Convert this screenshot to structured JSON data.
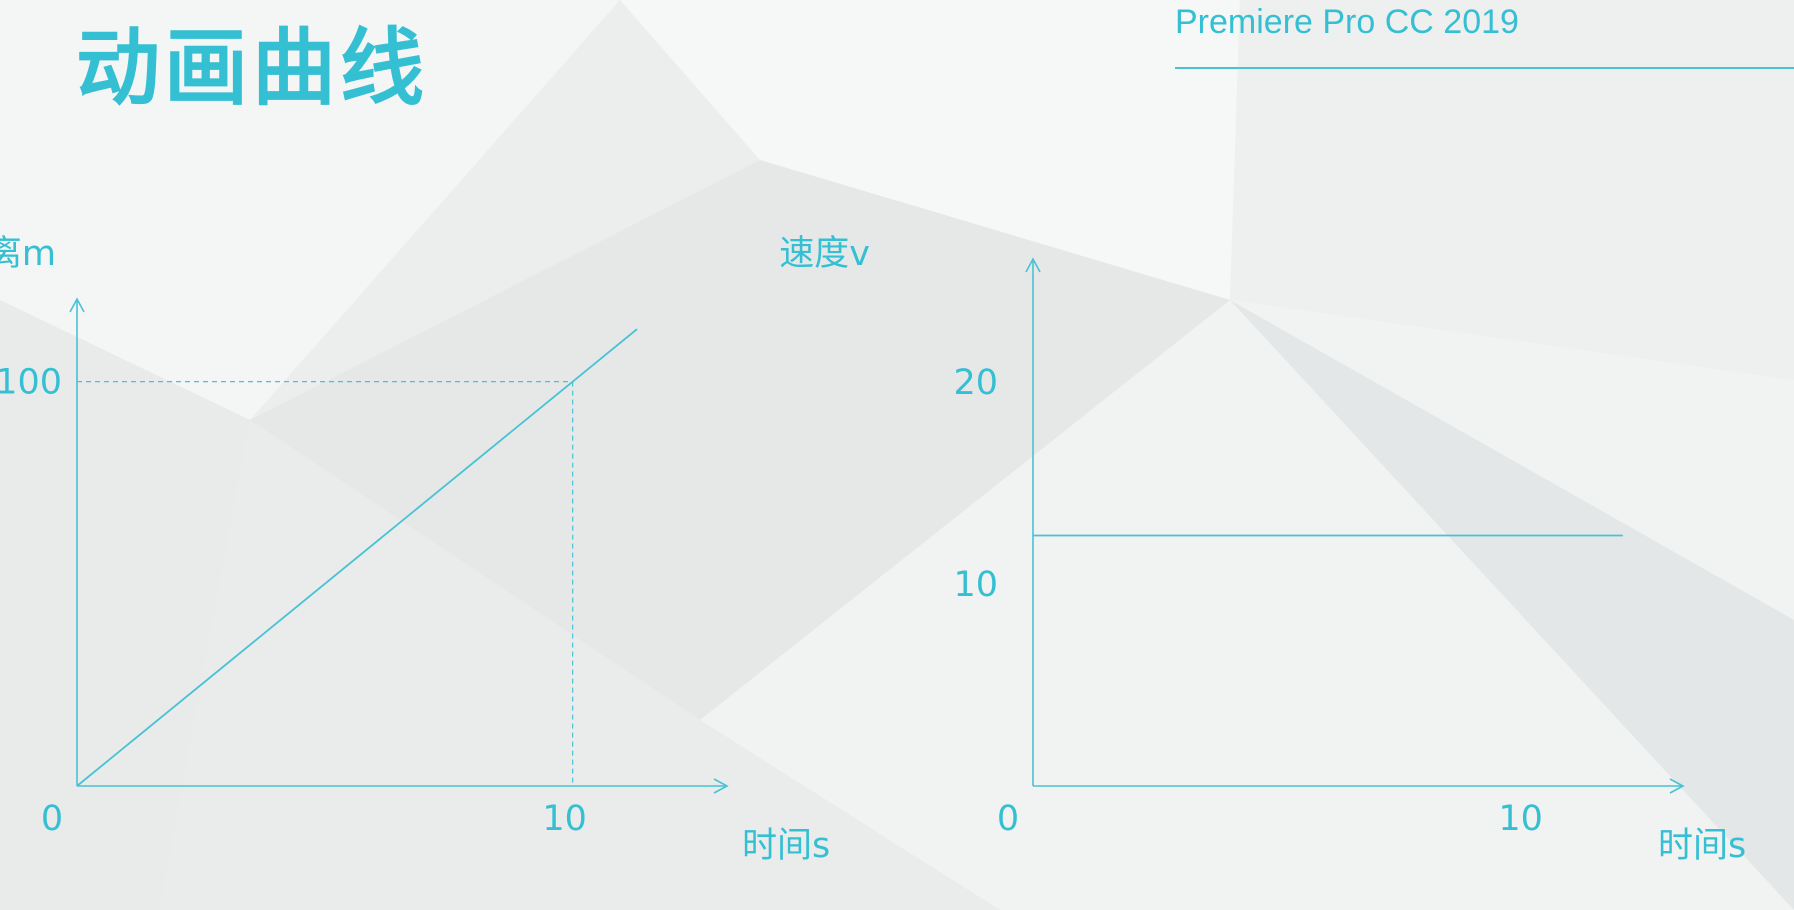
{
  "slide": {
    "title": "动画曲线",
    "app_label": "Premiere Pro CC 2019"
  },
  "theme": {
    "accent": "#35bfd3",
    "line": "#48c2d4",
    "background": "#eef0f0"
  },
  "chart_data": [
    {
      "type": "line",
      "ylabel": "距离m",
      "xlabel": "时间s",
      "origin_label": "0",
      "x_ticks": [
        "10"
      ],
      "y_ticks": [
        "100"
      ],
      "xlim": [
        0,
        11.5
      ],
      "ylim": [
        0,
        115
      ],
      "grid": false,
      "series": [
        {
          "x": [
            0,
            10,
            11.3
          ],
          "y": [
            0,
            100,
            113
          ]
        }
      ],
      "reference_point": {
        "x": 10,
        "y": 100,
        "style": "dashed"
      }
    },
    {
      "type": "line",
      "ylabel": "速度v",
      "xlabel": "时间s",
      "origin_label": "0",
      "x_ticks": [
        "10"
      ],
      "y_ticks": [
        "20",
        "10"
      ],
      "xlim": [
        0,
        11.5
      ],
      "ylim": [
        0,
        25
      ],
      "grid": false,
      "series": [
        {
          "x": [
            0,
            11.9
          ],
          "y": [
            12.4,
            12.4
          ]
        }
      ]
    }
  ]
}
